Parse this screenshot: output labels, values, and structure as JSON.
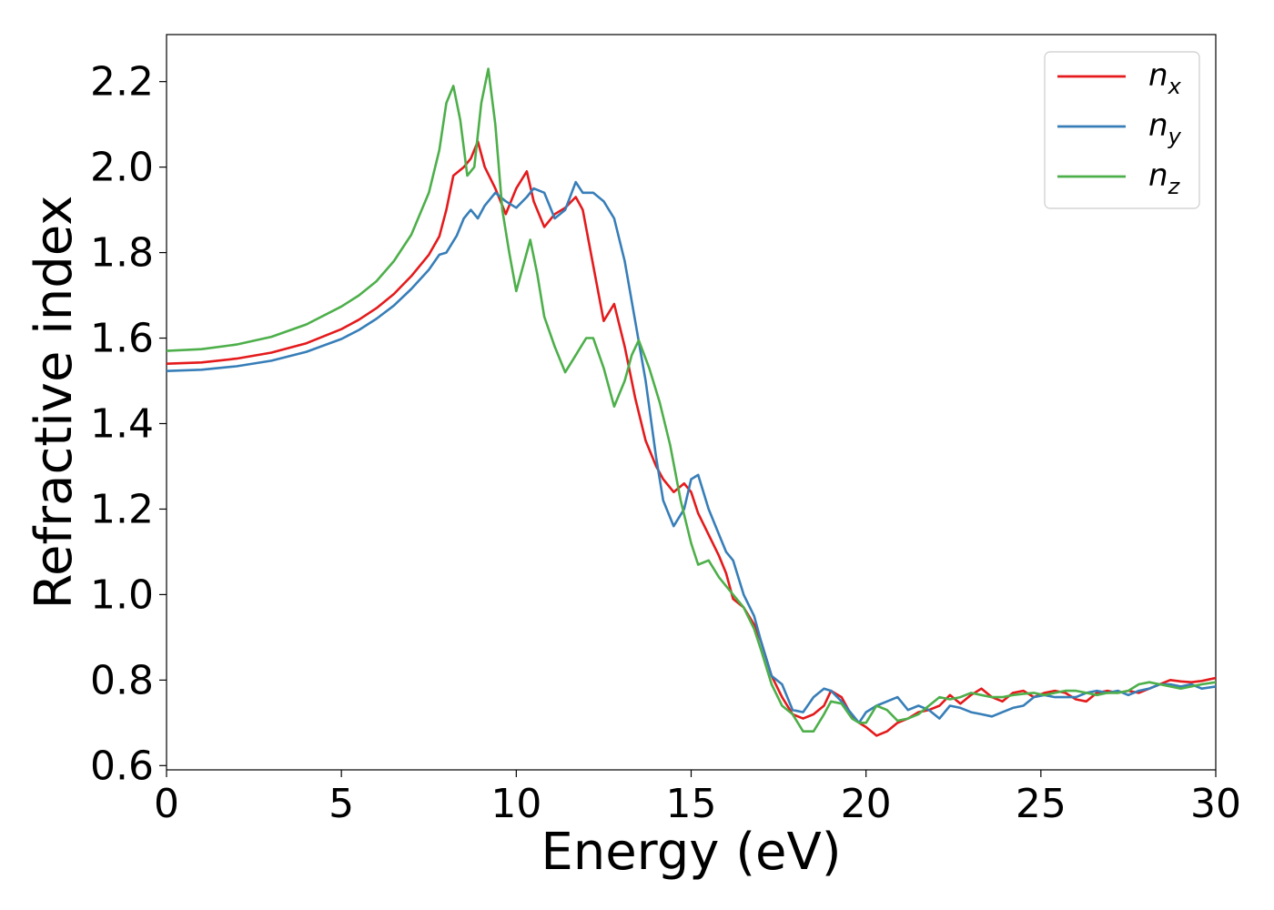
{
  "chart_data": {
    "type": "line",
    "title": "",
    "xlabel": "Energy (eV)",
    "ylabel": "Refractive index",
    "xlim": [
      0,
      30
    ],
    "ylim": [
      0.59,
      2.31
    ],
    "xticks": [
      0,
      5,
      10,
      15,
      20,
      25,
      30
    ],
    "xtick_labels": [
      "0",
      "5",
      "10",
      "15",
      "20",
      "25",
      "30"
    ],
    "yticks": [
      0.6,
      0.8,
      1.0,
      1.2,
      1.4,
      1.6,
      1.8,
      2.0,
      2.2
    ],
    "ytick_labels": [
      "0.6",
      "0.8",
      "1.0",
      "1.2",
      "1.4",
      "1.6",
      "1.8",
      "2.0",
      "2.2"
    ],
    "grid": false,
    "legend_position": "top-right",
    "series": [
      {
        "name": "n_x",
        "legend_base": "n",
        "legend_sub": "x",
        "color": "#e41a1c",
        "x": [
          0,
          1,
          2,
          3,
          4,
          5,
          5.5,
          6,
          6.5,
          7,
          7.5,
          7.8,
          8.0,
          8.2,
          8.5,
          8.7,
          8.9,
          9.1,
          9.4,
          9.7,
          10.0,
          10.3,
          10.5,
          10.8,
          11.1,
          11.4,
          11.7,
          11.9,
          12.2,
          12.5,
          12.8,
          13.1,
          13.4,
          13.7,
          14.0,
          14.2,
          14.5,
          14.8,
          15.0,
          15.2,
          15.5,
          15.8,
          16.0,
          16.2,
          16.5,
          16.8,
          17.0,
          17.3,
          17.6,
          17.9,
          18.2,
          18.5,
          18.8,
          19.0,
          19.3,
          19.6,
          19.8,
          20.0,
          20.3,
          20.6,
          20.9,
          21.2,
          21.5,
          21.8,
          22.1,
          22.4,
          22.7,
          23.0,
          23.3,
          23.6,
          23.9,
          24.2,
          24.5,
          24.8,
          25.1,
          25.4,
          25.7,
          26.0,
          26.3,
          26.6,
          26.9,
          27.2,
          27.5,
          27.8,
          28.1,
          28.4,
          28.7,
          29.0,
          29.3,
          29.6,
          30.0
        ],
        "y": [
          1.54,
          1.543,
          1.552,
          1.566,
          1.588,
          1.621,
          1.643,
          1.67,
          1.703,
          1.745,
          1.795,
          1.838,
          1.9,
          1.98,
          2.0,
          2.02,
          2.06,
          2.0,
          1.95,
          1.89,
          1.95,
          1.99,
          1.92,
          1.86,
          1.89,
          1.905,
          1.93,
          1.9,
          1.77,
          1.64,
          1.68,
          1.58,
          1.46,
          1.36,
          1.3,
          1.27,
          1.24,
          1.26,
          1.24,
          1.19,
          1.14,
          1.09,
          1.05,
          0.99,
          0.97,
          0.93,
          0.89,
          0.81,
          0.76,
          0.72,
          0.71,
          0.72,
          0.74,
          0.775,
          0.76,
          0.715,
          0.7,
          0.69,
          0.67,
          0.68,
          0.7,
          0.71,
          0.725,
          0.73,
          0.74,
          0.765,
          0.745,
          0.765,
          0.78,
          0.76,
          0.75,
          0.77,
          0.775,
          0.76,
          0.77,
          0.775,
          0.77,
          0.755,
          0.75,
          0.77,
          0.775,
          0.77,
          0.775,
          0.77,
          0.78,
          0.79,
          0.8,
          0.797,
          0.795,
          0.798,
          0.805
        ]
      },
      {
        "name": "n_y",
        "legend_base": "n",
        "legend_sub": "y",
        "color": "#377eb8",
        "x": [
          0,
          1,
          2,
          3,
          4,
          5,
          5.5,
          6,
          6.5,
          7,
          7.5,
          7.8,
          8.0,
          8.3,
          8.5,
          8.7,
          8.9,
          9.1,
          9.4,
          9.7,
          10.0,
          10.3,
          10.5,
          10.8,
          11.1,
          11.4,
          11.7,
          11.9,
          12.2,
          12.5,
          12.8,
          13.1,
          13.4,
          13.7,
          14.0,
          14.2,
          14.5,
          14.8,
          15.0,
          15.2,
          15.5,
          15.8,
          16.0,
          16.2,
          16.5,
          16.8,
          17.0,
          17.3,
          17.6,
          17.9,
          18.2,
          18.5,
          18.8,
          19.0,
          19.3,
          19.6,
          19.8,
          20.0,
          20.3,
          20.6,
          20.9,
          21.2,
          21.5,
          21.8,
          22.1,
          22.4,
          22.7,
          23.0,
          23.3,
          23.6,
          23.9,
          24.2,
          24.5,
          24.8,
          25.1,
          25.4,
          25.7,
          26.0,
          26.3,
          26.6,
          26.9,
          27.2,
          27.5,
          27.8,
          28.1,
          28.4,
          28.7,
          29.0,
          29.3,
          29.6,
          30.0
        ],
        "y": [
          1.523,
          1.526,
          1.534,
          1.547,
          1.568,
          1.598,
          1.619,
          1.645,
          1.676,
          1.715,
          1.76,
          1.795,
          1.8,
          1.84,
          1.88,
          1.9,
          1.88,
          1.91,
          1.94,
          1.92,
          1.905,
          1.93,
          1.95,
          1.94,
          1.88,
          1.9,
          1.965,
          1.94,
          1.94,
          1.92,
          1.88,
          1.78,
          1.64,
          1.5,
          1.32,
          1.22,
          1.16,
          1.2,
          1.27,
          1.28,
          1.2,
          1.14,
          1.1,
          1.08,
          1.0,
          0.95,
          0.89,
          0.81,
          0.79,
          0.73,
          0.725,
          0.76,
          0.78,
          0.775,
          0.75,
          0.72,
          0.7,
          0.725,
          0.74,
          0.75,
          0.76,
          0.73,
          0.74,
          0.73,
          0.71,
          0.74,
          0.735,
          0.725,
          0.72,
          0.715,
          0.725,
          0.735,
          0.74,
          0.76,
          0.765,
          0.76,
          0.76,
          0.76,
          0.77,
          0.775,
          0.77,
          0.775,
          0.765,
          0.775,
          0.78,
          0.79,
          0.79,
          0.785,
          0.79,
          0.78,
          0.785
        ]
      },
      {
        "name": "n_z",
        "legend_base": "n",
        "legend_sub": "z",
        "color": "#4daf4a",
        "x": [
          0,
          1,
          2,
          3,
          4,
          5,
          5.5,
          6,
          6.5,
          7,
          7.5,
          7.8,
          8.0,
          8.2,
          8.4,
          8.6,
          8.8,
          9.0,
          9.2,
          9.4,
          9.6,
          9.8,
          10.0,
          10.2,
          10.4,
          10.6,
          10.8,
          11.1,
          11.4,
          11.7,
          12.0,
          12.2,
          12.5,
          12.8,
          13.1,
          13.3,
          13.5,
          13.8,
          14.1,
          14.4,
          14.7,
          15.0,
          15.2,
          15.5,
          15.8,
          16.2,
          16.5,
          16.8,
          17.0,
          17.3,
          17.6,
          17.9,
          18.2,
          18.5,
          18.8,
          19.0,
          19.3,
          19.6,
          19.8,
          20.0,
          20.3,
          20.6,
          20.9,
          21.2,
          21.5,
          21.8,
          22.1,
          22.4,
          22.7,
          23.0,
          23.3,
          23.6,
          23.9,
          24.2,
          24.5,
          24.8,
          25.1,
          25.4,
          25.7,
          26.0,
          26.3,
          26.6,
          26.9,
          27.2,
          27.5,
          27.8,
          28.1,
          28.4,
          28.7,
          29.0,
          29.3,
          29.6,
          30.0
        ],
        "y": [
          1.57,
          1.574,
          1.585,
          1.603,
          1.632,
          1.674,
          1.7,
          1.733,
          1.78,
          1.842,
          1.94,
          2.04,
          2.15,
          2.19,
          2.11,
          1.98,
          2.0,
          2.15,
          2.23,
          2.1,
          1.9,
          1.8,
          1.71,
          1.77,
          1.83,
          1.75,
          1.65,
          1.58,
          1.52,
          1.56,
          1.6,
          1.6,
          1.53,
          1.44,
          1.5,
          1.56,
          1.595,
          1.53,
          1.45,
          1.35,
          1.22,
          1.12,
          1.07,
          1.08,
          1.04,
          1.0,
          0.97,
          0.92,
          0.87,
          0.79,
          0.74,
          0.72,
          0.68,
          0.68,
          0.72,
          0.75,
          0.745,
          0.71,
          0.7,
          0.7,
          0.74,
          0.73,
          0.705,
          0.71,
          0.72,
          0.74,
          0.76,
          0.755,
          0.76,
          0.77,
          0.765,
          0.76,
          0.76,
          0.765,
          0.768,
          0.77,
          0.765,
          0.77,
          0.775,
          0.775,
          0.77,
          0.765,
          0.77,
          0.77,
          0.775,
          0.79,
          0.795,
          0.79,
          0.785,
          0.78,
          0.785,
          0.79,
          0.795
        ]
      }
    ]
  }
}
